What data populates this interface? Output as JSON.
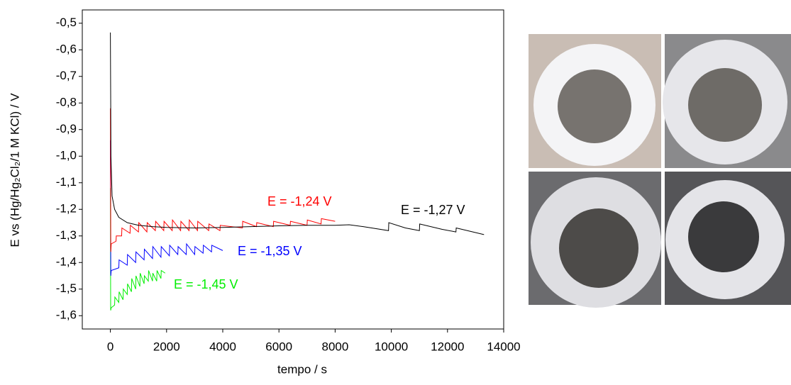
{
  "chart_data": {
    "type": "line",
    "ylabel": "E vs (Hg/Hg₂Cl₂/1 M KCl) / V",
    "xlabel": "tempo / s",
    "xlim": [
      -1000,
      14000
    ],
    "ylim": [
      -1.65,
      -0.45
    ],
    "xticks": [
      0,
      2000,
      4000,
      6000,
      8000,
      10000,
      12000,
      14000
    ],
    "yticks": [
      {
        "value": -0.5,
        "label": "-0,5"
      },
      {
        "value": -0.6,
        "label": "-0,6"
      },
      {
        "value": -0.7,
        "label": "-0,7"
      },
      {
        "value": -0.8,
        "label": "-0,8"
      },
      {
        "value": -0.9,
        "label": "-0,9"
      },
      {
        "value": -1.0,
        "label": "-1,0"
      },
      {
        "value": -1.1,
        "label": "-1,1"
      },
      {
        "value": -1.2,
        "label": "-1,2"
      },
      {
        "value": -1.3,
        "label": "-1,3"
      },
      {
        "value": -1.4,
        "label": "-1,4"
      },
      {
        "value": -1.5,
        "label": "-1,5"
      },
      {
        "value": -1.6,
        "label": "-1,6"
      }
    ],
    "series": [
      {
        "color": "#000000",
        "x": [
          0,
          20,
          60,
          150,
          300,
          600,
          1000,
          1500,
          2000,
          3000,
          4000,
          5000,
          6000,
          7000,
          8000,
          8500,
          9000,
          9900,
          9910,
          10500,
          11000,
          11010,
          11800,
          12300,
          12310,
          13300
        ],
        "values": [
          -0.535,
          -1.0,
          -1.15,
          -1.2,
          -1.23,
          -1.25,
          -1.26,
          -1.265,
          -1.268,
          -1.27,
          -1.268,
          -1.265,
          -1.262,
          -1.26,
          -1.26,
          -1.258,
          -1.265,
          -1.28,
          -1.25,
          -1.27,
          -1.28,
          -1.255,
          -1.275,
          -1.285,
          -1.27,
          -1.295
        ]
      },
      {
        "color": "#ff0000",
        "x": [
          0,
          15,
          30,
          200,
          210,
          400,
          410,
          700,
          710,
          1000,
          1010,
          1300,
          1310,
          1600,
          1610,
          1900,
          1910,
          2200,
          2210,
          2500,
          2510,
          2800,
          2810,
          3100,
          3110,
          3500,
          3510,
          3900,
          3910,
          4700,
          4710,
          5200,
          5210,
          5800,
          5810,
          6400,
          6410,
          7000,
          7010,
          7500,
          7510,
          8000
        ],
        "values": [
          -0.82,
          -1.36,
          -1.33,
          -1.32,
          -1.3,
          -1.3,
          -1.27,
          -1.29,
          -1.26,
          -1.285,
          -1.25,
          -1.285,
          -1.25,
          -1.28,
          -1.245,
          -1.28,
          -1.245,
          -1.28,
          -1.24,
          -1.28,
          -1.245,
          -1.28,
          -1.24,
          -1.28,
          -1.245,
          -1.28,
          -1.255,
          -1.28,
          -1.26,
          -1.27,
          -1.245,
          -1.265,
          -1.25,
          -1.265,
          -1.245,
          -1.26,
          -1.245,
          -1.26,
          -1.24,
          -1.255,
          -1.235,
          -1.245
        ]
      },
      {
        "color": "#0000ff",
        "x": [
          0,
          15,
          30,
          300,
          310,
          600,
          610,
          900,
          910,
          1200,
          1210,
          1500,
          1510,
          1800,
          1810,
          2100,
          2110,
          2400,
          2410,
          2700,
          2710,
          3000,
          3010,
          3300,
          3310,
          3600,
          3610,
          4000
        ],
        "values": [
          -0.94,
          -1.45,
          -1.43,
          -1.42,
          -1.39,
          -1.41,
          -1.37,
          -1.4,
          -1.36,
          -1.39,
          -1.35,
          -1.385,
          -1.34,
          -1.38,
          -1.34,
          -1.375,
          -1.335,
          -1.37,
          -1.34,
          -1.37,
          -1.33,
          -1.37,
          -1.34,
          -1.365,
          -1.335,
          -1.36,
          -1.335,
          -1.355
        ]
      },
      {
        "color": "#00ee00",
        "x": [
          0,
          10,
          30,
          150,
          160,
          300,
          310,
          450,
          460,
          600,
          610,
          750,
          760,
          900,
          910,
          1050,
          1060,
          1200,
          1210,
          1350,
          1360,
          1500,
          1510,
          1650,
          1660,
          1800,
          1810,
          1950
        ],
        "values": [
          -1.12,
          -1.58,
          -1.57,
          -1.56,
          -1.53,
          -1.55,
          -1.51,
          -1.54,
          -1.5,
          -1.52,
          -1.48,
          -1.51,
          -1.46,
          -1.5,
          -1.45,
          -1.49,
          -1.44,
          -1.48,
          -1.45,
          -1.47,
          -1.43,
          -1.47,
          -1.44,
          -1.47,
          -1.43,
          -1.46,
          -1.43,
          -1.44
        ]
      }
    ],
    "annotations": [
      {
        "text": "E = -1,27 V",
        "color": "#000000"
      },
      {
        "text": "E = -1,24 V",
        "color": "#ff0000"
      },
      {
        "text": "E = -1,35 V",
        "color": "#0000ff"
      },
      {
        "text": "E = -1,45 V",
        "color": "#00ee00"
      }
    ]
  }
}
